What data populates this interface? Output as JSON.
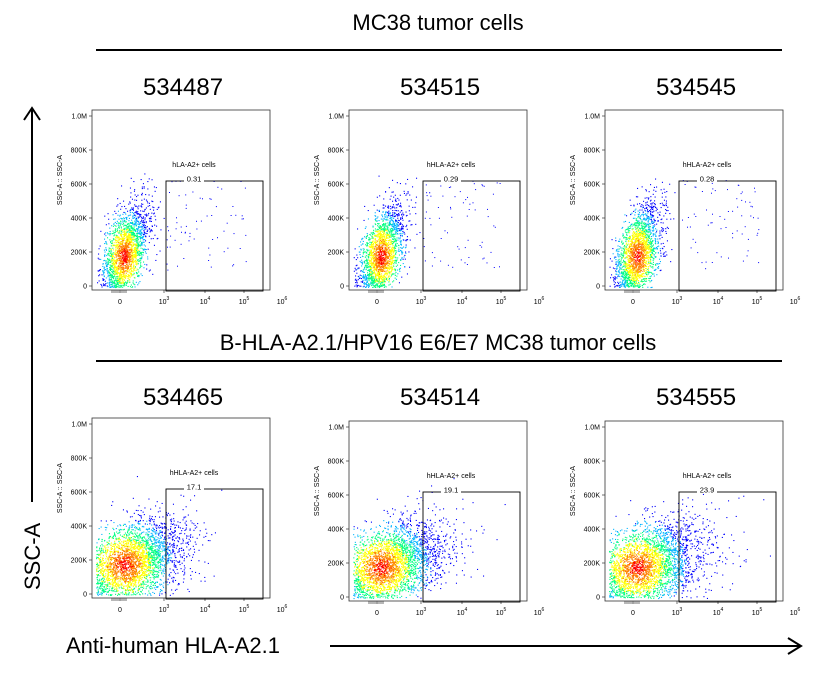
{
  "figure": {
    "y_axis_label": "SSC-A",
    "x_axis_label": "Anti-human HLA-A2.1"
  },
  "chart_data": {
    "type": "scatter",
    "groups": [
      {
        "title": "MC38 tumor cells",
        "panels": [
          {
            "sample": "534487",
            "gate_name": "hLA-A2+ cells",
            "percent": "0.31"
          },
          {
            "sample": "534515",
            "gate_name": "hHLA-A2+ cells",
            "percent": "0.29"
          },
          {
            "sample": "534545",
            "gate_name": "hHLA-A2+ cells",
            "percent": "0.28"
          }
        ]
      },
      {
        "title": "B-HLA-A2.1/HPV16 E6/E7 MC38 tumor cells",
        "panels": [
          {
            "sample": "534465",
            "gate_name": "hHLA-A2+ cells",
            "percent": "17.1"
          },
          {
            "sample": "534514",
            "gate_name": "hHLA-A2+ cells",
            "percent": "19.1"
          },
          {
            "sample": "534555",
            "gate_name": "hHLA-A2+ cells",
            "percent": "23.9"
          }
        ]
      }
    ],
    "panel_axis": {
      "ylabel": "SSC-A :: SSC-A",
      "y_ticks": [
        "0",
        "200K",
        "400K",
        "600K",
        "800K",
        "1.0M"
      ],
      "x_ticks": [
        "0",
        "10",
        "10",
        "10",
        "10"
      ],
      "x_tick_exponents": [
        "",
        "3",
        "4",
        "5",
        "6"
      ],
      "x_scale": "biexponential",
      "ylim": [
        0,
        1000000
      ]
    },
    "colors": [
      "#0000ff",
      "#00b4ff",
      "#00ff80",
      "#ffff00",
      "#ff8000",
      "#ff0000"
    ]
  }
}
